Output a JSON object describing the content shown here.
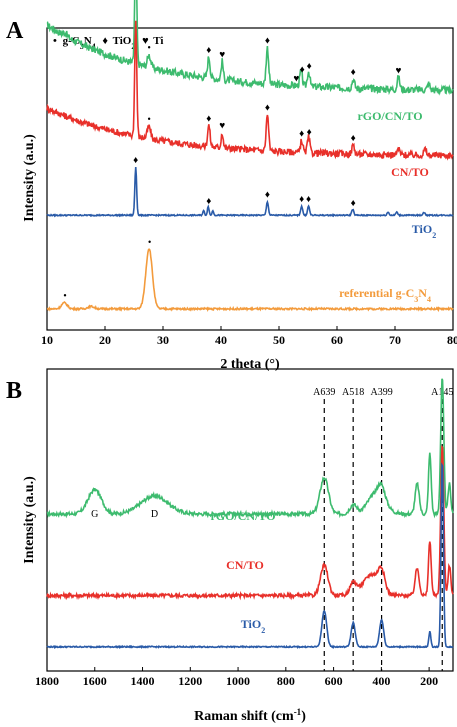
{
  "colors": {
    "green": "#3dbb6e",
    "red": "#e8302a",
    "blue": "#2a5ba8",
    "orange": "#f39b3c"
  },
  "chart_data": [
    {
      "panel": "A",
      "type": "line",
      "xlabel": "2 theta (°)",
      "ylabel": "Intensity (a.u.)",
      "xlim": [
        10,
        80
      ],
      "xticks": [
        10,
        20,
        30,
        40,
        50,
        60,
        70,
        80
      ],
      "yticks_shown": false,
      "legend": {
        "placement": "top-left",
        "entries": [
          {
            "symbol": "•",
            "label": "g-C3N4"
          },
          {
            "symbol": "♦",
            "label": "TiO2"
          },
          {
            "symbol": "♥",
            "label": "Ti"
          }
        ]
      },
      "series": [
        {
          "name": "rGO/CN/TO",
          "color_key": "green",
          "baseline": 0.79,
          "slope": 0.22,
          "noise": 0.012,
          "peaks": [
            [
              13.1,
              0.01,
              0.5
            ],
            [
              25.3,
              0.36,
              0.25
            ],
            [
              27.6,
              0.04,
              0.4
            ],
            [
              37.9,
              0.07,
              0.3
            ],
            [
              40.2,
              0.06,
              0.25
            ],
            [
              48.0,
              0.12,
              0.3
            ],
            [
              53.8,
              0.05,
              0.3
            ],
            [
              55.1,
              0.05,
              0.3
            ],
            [
              62.8,
              0.03,
              0.3
            ],
            [
              70.6,
              0.04,
              0.3
            ],
            [
              75.8,
              0.02,
              0.3
            ]
          ],
          "markers": [
            {
              "x": 25.3,
              "sym": "♦"
            },
            {
              "x": 27.6,
              "sym": "•"
            },
            {
              "x": 37.9,
              "sym": "♦"
            },
            {
              "x": 40.2,
              "sym": "♥"
            },
            {
              "x": 48.0,
              "sym": "♦"
            },
            {
              "x": 53.0,
              "sym": "♥"
            },
            {
              "x": 54.0,
              "sym": "♦"
            },
            {
              "x": 55.2,
              "sym": "♦"
            },
            {
              "x": 62.8,
              "sym": "♦"
            },
            {
              "x": 70.6,
              "sym": "♥"
            }
          ]
        },
        {
          "name": "CN/TO",
          "color_key": "red",
          "baseline": 0.575,
          "slope": 0.16,
          "noise": 0.011,
          "peaks": [
            [
              25.3,
              0.38,
              0.25
            ],
            [
              27.6,
              0.04,
              0.4
            ],
            [
              37.9,
              0.07,
              0.3
            ],
            [
              40.2,
              0.05,
              0.25
            ],
            [
              48.0,
              0.12,
              0.3
            ],
            [
              53.9,
              0.04,
              0.3
            ],
            [
              55.1,
              0.05,
              0.3
            ],
            [
              62.8,
              0.03,
              0.3
            ],
            [
              70.6,
              0.02,
              0.3
            ],
            [
              75.2,
              0.02,
              0.3
            ]
          ],
          "markers": [
            {
              "x": 27.6,
              "sym": "•"
            },
            {
              "x": 37.9,
              "sym": "♦"
            },
            {
              "x": 40.2,
              "sym": "♥"
            },
            {
              "x": 48.0,
              "sym": "♦"
            },
            {
              "x": 53.9,
              "sym": "♦"
            },
            {
              "x": 55.2,
              "sym": "♦"
            },
            {
              "x": 62.8,
              "sym": "♦"
            }
          ]
        },
        {
          "name": "TiO2",
          "color_key": "blue",
          "baseline": 0.38,
          "slope": 0.0,
          "noise": 0.002,
          "peaks": [
            [
              25.3,
              0.16,
              0.22
            ],
            [
              37.0,
              0.015,
              0.2
            ],
            [
              37.8,
              0.03,
              0.2
            ],
            [
              38.6,
              0.015,
              0.2
            ],
            [
              48.0,
              0.045,
              0.25
            ],
            [
              53.9,
              0.03,
              0.25
            ],
            [
              55.1,
              0.03,
              0.25
            ],
            [
              62.7,
              0.02,
              0.25
            ],
            [
              68.8,
              0.01,
              0.25
            ],
            [
              70.3,
              0.01,
              0.25
            ],
            [
              75.0,
              0.01,
              0.25
            ]
          ],
          "markers": [
            {
              "x": 25.3,
              "sym": "♦"
            },
            {
              "x": 37.9,
              "sym": "♦"
            },
            {
              "x": 48.0,
              "sym": "♦"
            },
            {
              "x": 53.9,
              "sym": "♦"
            },
            {
              "x": 55.1,
              "sym": "♦"
            },
            {
              "x": 62.8,
              "sym": "♦"
            }
          ]
        },
        {
          "name": "referential g-C3N4",
          "color_key": "orange",
          "baseline": 0.07,
          "slope": 0.0,
          "noise": 0.003,
          "peaks": [
            [
              13.0,
              0.02,
              0.7
            ],
            [
              17.6,
              0.008,
              0.8
            ],
            [
              27.6,
              0.2,
              0.8
            ]
          ],
          "markers": [
            {
              "x": 13.1,
              "sym": "•"
            },
            {
              "x": 27.7,
              "sym": "•"
            }
          ]
        }
      ]
    },
    {
      "panel": "B",
      "type": "line",
      "xlabel": "Raman shift (cm-1)",
      "ylabel": "Intensity (a.u.)",
      "xlim": [
        1800,
        100
      ],
      "x_reversed": true,
      "xticks": [
        1800,
        1600,
        1400,
        1200,
        1000,
        800,
        600,
        400,
        200
      ],
      "yticks_shown": false,
      "reference_lines": [
        {
          "x": 639,
          "label": "A639"
        },
        {
          "x": 518,
          "label": "A518"
        },
        {
          "x": 399,
          "label": "A399"
        },
        {
          "x": 145,
          "label": "A145"
        }
      ],
      "annotations": [
        {
          "x": 1600,
          "label": "G"
        },
        {
          "x": 1350,
          "label": "D"
        }
      ],
      "series": [
        {
          "name": "rGO/CN/TO",
          "color_key": "green",
          "baseline": 0.52,
          "noise": 0.006,
          "peaks": [
            [
              1600,
              0.08,
              40
            ],
            [
              1350,
              0.06,
              80
            ],
            [
              639,
              0.12,
              25
            ],
            [
              518,
              0.03,
              20
            ],
            [
              420,
              0.07,
              50
            ],
            [
              399,
              0.04,
              20
            ],
            [
              250,
              0.1,
              12
            ],
            [
              197,
              0.2,
              8
            ],
            [
              145,
              0.45,
              9
            ],
            [
              115,
              0.1,
              8
            ]
          ]
        },
        {
          "name": "CN/TO",
          "color_key": "red",
          "baseline": 0.25,
          "noise": 0.006,
          "peaks": [
            [
              639,
              0.1,
              22
            ],
            [
              518,
              0.04,
              20
            ],
            [
              440,
              0.07,
              50
            ],
            [
              399,
              0.06,
              18
            ],
            [
              250,
              0.09,
              12
            ],
            [
              197,
              0.18,
              8
            ],
            [
              145,
              0.5,
              9
            ],
            [
              115,
              0.1,
              8
            ]
          ]
        },
        {
          "name": "TiO2",
          "color_key": "blue",
          "baseline": 0.08,
          "noise": 0.002,
          "peaks": [
            [
              639,
              0.12,
              14
            ],
            [
              518,
              0.08,
              12
            ],
            [
              399,
              0.09,
              12
            ],
            [
              197,
              0.05,
              6
            ],
            [
              145,
              0.62,
              7
            ]
          ]
        }
      ]
    }
  ]
}
